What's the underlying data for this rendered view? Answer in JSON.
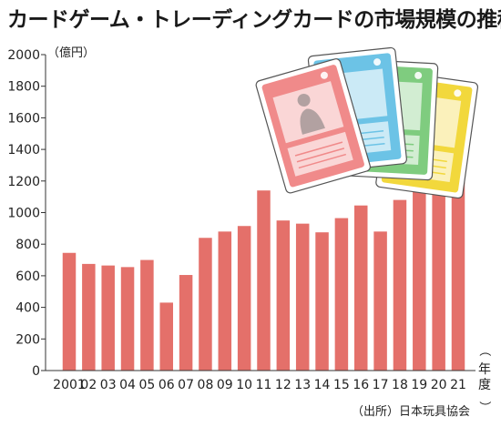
{
  "chart_data": {
    "type": "bar",
    "title": "カードゲーム・トレーディングカードの市場規模の推移",
    "ylabel": "（億円）",
    "xlabel": "年度",
    "source": "（出所）日本玩具協会",
    "categories": [
      "2001",
      "02",
      "03",
      "04",
      "05",
      "06",
      "07",
      "08",
      "09",
      "10",
      "11",
      "12",
      "13",
      "14",
      "15",
      "16",
      "17",
      "18",
      "19",
      "20",
      "21"
    ],
    "values": [
      745,
      675,
      665,
      655,
      700,
      430,
      605,
      840,
      880,
      915,
      1140,
      950,
      930,
      875,
      965,
      1045,
      880,
      1080,
      1135,
      1225,
      1785
    ],
    "ylim": [
      0,
      2000
    ],
    "yticks": [
      0,
      200,
      400,
      600,
      800,
      1000,
      1200,
      1400,
      1600,
      1800,
      2000
    ],
    "bar_color": "#e4706a",
    "card_colors": [
      "#f08a8a",
      "#6cc3e6",
      "#7fcc7f",
      "#f2d83c"
    ]
  }
}
